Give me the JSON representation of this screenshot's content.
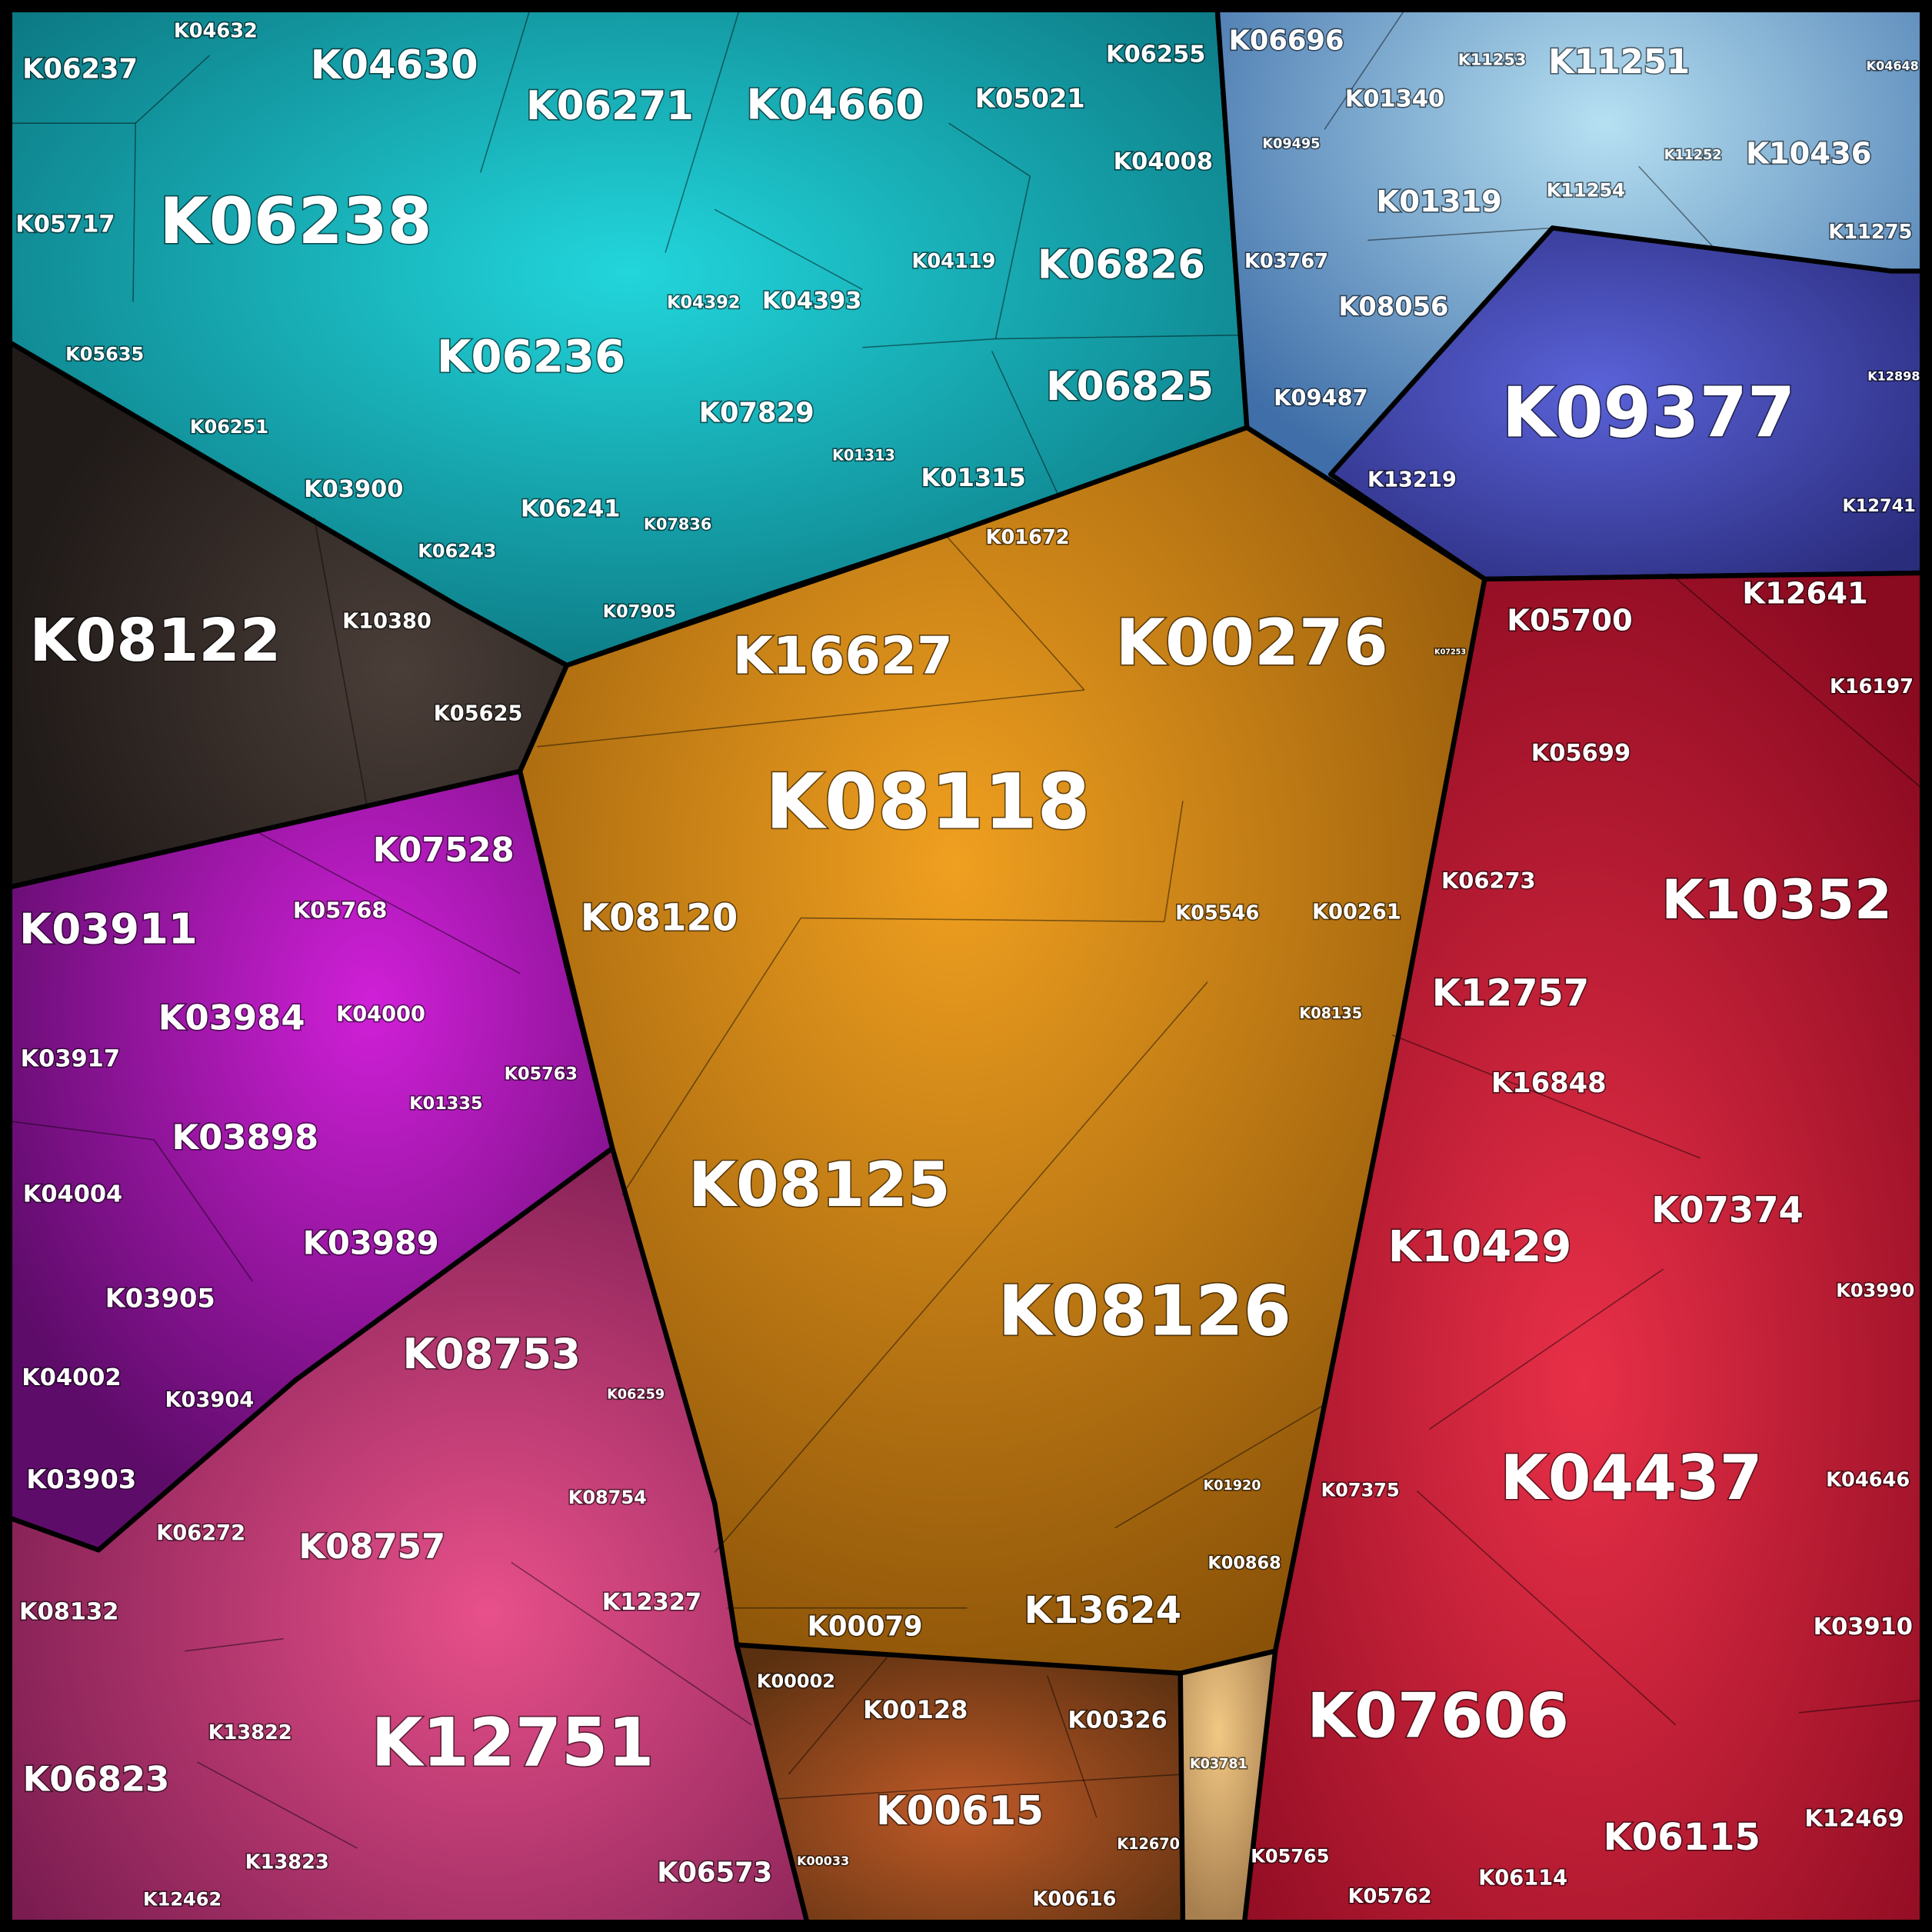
{
  "groups": [
    {
      "cells": [
        "K06237",
        "K04632",
        "K04630",
        "K06271",
        "K04660",
        "K05021",
        "K06255",
        "K04008",
        "K05717",
        "K06238",
        "K04392",
        "K04393",
        "K04119",
        "K06826",
        "K05635",
        "K06236",
        "K07829",
        "K06825",
        "K06251",
        "K01313",
        "K01315",
        "K03900",
        "K06241",
        "K07836",
        "K06243",
        "K07905"
      ]
    },
    {
      "cells": [
        "K06696",
        "K11253",
        "K11251",
        "K04648",
        "K01340",
        "K09495",
        "K11252",
        "K10436",
        "K11254",
        "K01319",
        "K11275",
        "K03767",
        "K08056",
        "K12898",
        "K09487",
        "K09377",
        "K13219",
        "K12741"
      ]
    },
    {
      "cells": [
        "K08122",
        "K10380",
        "K05625"
      ]
    },
    {
      "cells": [
        "K01672",
        "K16627",
        "K00276",
        "K07253",
        "K08118",
        "K08120",
        "K05546",
        "K00261",
        "K08135",
        "K08125",
        "K08126",
        "K01920",
        "K00868",
        "K13624",
        "K00079"
      ]
    },
    {
      "cells": [
        "K07528",
        "K05768",
        "K03911",
        "K03984",
        "K04000",
        "K03917",
        "K05763",
        "K01335",
        "K03898",
        "K04004",
        "K03989",
        "K03905",
        "K04002",
        "K03904",
        "K03903"
      ]
    },
    {
      "cells": [
        "K08753",
        "K06259",
        "K08754",
        "K06272",
        "K08757",
        "K12327",
        "K08132",
        "K13822",
        "K12751",
        "K06823",
        "K13823",
        "K06573",
        "K12462"
      ]
    },
    {
      "cells": [
        "K12641",
        "K05700",
        "K16197",
        "K05699",
        "K06273",
        "K10352",
        "K12757",
        "K16848",
        "K07374",
        "K10429",
        "K03990",
        "K04646",
        "K04437",
        "K07375",
        "K03910",
        "K07606",
        "K12469",
        "K06115",
        "K05765",
        "K06114",
        "K05762"
      ]
    },
    {
      "cells": [
        "K00002",
        "K00128",
        "K00326",
        "K00615",
        "K03781",
        "K12670",
        "K00033",
        "K00616"
      ]
    }
  ]
}
